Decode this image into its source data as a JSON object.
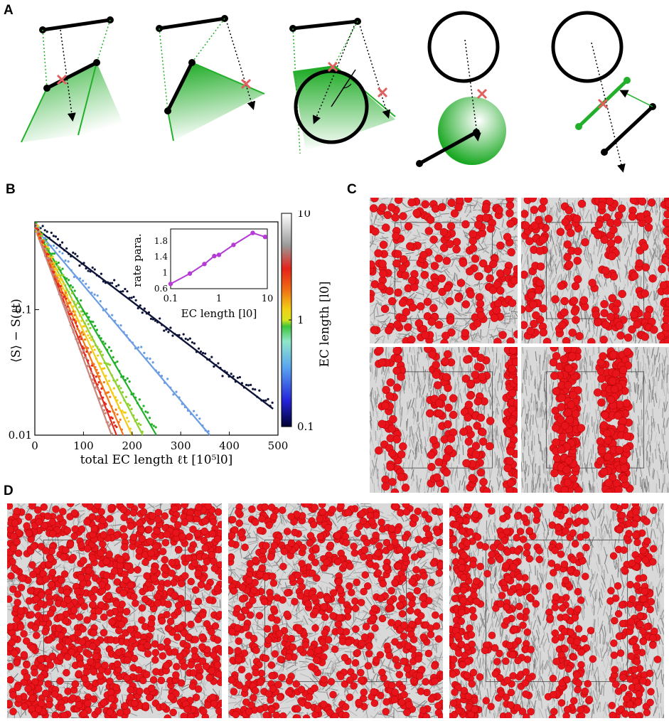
{
  "figure": {
    "panels": {
      "a": "A",
      "b": "B",
      "c": "C",
      "d": "D"
    }
  },
  "colors": {
    "cell": "#e8141b",
    "fiber": "#9a9a9a",
    "green": "#22b02a",
    "cross": "#e06060",
    "inset_curve": "#b43bd4",
    "dark_series": "#0e1438"
  },
  "chart_data": [
    {
      "type": "line",
      "scale_y": "log",
      "xlabel": "total EC length ℓt [10⁵l0]",
      "ylabel": "⟨S⟩ − S(ℓt)",
      "xlim": [
        0,
        500
      ],
      "ylim": [
        0.01,
        0.5
      ],
      "x_ticks": [
        "0",
        "100",
        "200",
        "300",
        "400",
        "500"
      ],
      "y_ticks": [
        "0.01",
        "0.1"
      ],
      "series": [
        {
          "color": "#0e1438",
          "x": [
            0,
            490
          ],
          "y": [
            0.45,
            0.0162
          ]
        },
        {
          "color": "#6a9de4",
          "x": [
            0,
            360
          ],
          "y": [
            0.45,
            0.01
          ]
        },
        {
          "color": "#22b02a",
          "x": [
            0,
            250
          ],
          "y": [
            0.45,
            0.01
          ]
        },
        {
          "color": "#8fd12e",
          "x": [
            0,
            222
          ],
          "y": [
            0.45,
            0.01
          ]
        },
        {
          "color": "#f2cc18",
          "x": [
            0,
            200
          ],
          "y": [
            0.45,
            0.01
          ]
        },
        {
          "color": "#f37716",
          "x": [
            0,
            182
          ],
          "y": [
            0.45,
            0.01
          ]
        },
        {
          "color": "#e62a1c",
          "x": [
            0,
            168
          ],
          "y": [
            0.45,
            0.01
          ]
        },
        {
          "color": "#c9877c",
          "x": [
            0,
            158
          ],
          "y": [
            0.45,
            0.01
          ]
        }
      ]
    },
    {
      "type": "line",
      "scale_x": "log",
      "xlabel": "EC length [l0]",
      "ylabel": "rate para.",
      "xlim": [
        0.1,
        10
      ],
      "ylim": [
        0.6,
        2.1
      ],
      "x_ticks": [
        "0.1",
        "1",
        "10"
      ],
      "y_ticks": [
        "0.6",
        "1",
        "1.4",
        "1.8"
      ],
      "series": [
        {
          "color": "#b43bd4",
          "x": [
            0.1,
            0.25,
            0.5,
            0.8,
            1.0,
            2.0,
            5.0,
            9.0
          ],
          "y": [
            0.72,
            0.98,
            1.22,
            1.42,
            1.45,
            1.7,
            2.0,
            1.9
          ]
        }
      ]
    },
    {
      "type": "heatmap",
      "colorbar_label": "EC length [l0]",
      "ticks": [
        "0.1",
        "1",
        "10"
      ],
      "scale": "log"
    }
  ]
}
